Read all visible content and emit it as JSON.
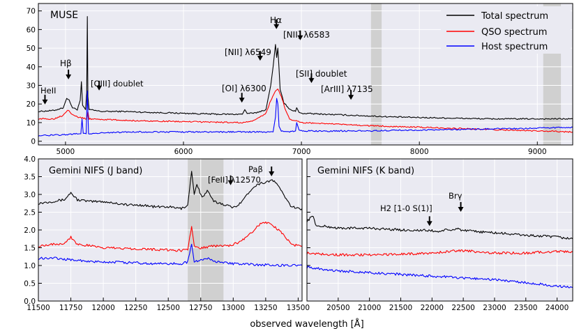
{
  "chart_data": [
    {
      "id": "muse",
      "type": "line",
      "panel_label": "MUSE",
      "xlim": [
        4770,
        9300
      ],
      "ylim": [
        -2,
        74
      ],
      "x_ticks": [
        5000,
        6000,
        7000,
        8000,
        9000
      ],
      "x_tick_labels": [
        "5000",
        "6000",
        "7000",
        "8000",
        "9000"
      ],
      "y_ticks": [
        0,
        10,
        20,
        30,
        40,
        50,
        60,
        70
      ],
      "y_tick_labels": [
        "0",
        "10",
        "20",
        "30",
        "40",
        "50",
        "60",
        "70"
      ],
      "shaded_bands": [
        [
          7590,
          7680
        ],
        [
          9050,
          9200
        ]
      ],
      "legend": [
        {
          "name": "Total spectrum",
          "color": "#000000"
        },
        {
          "name": "QSO spectrum",
          "color": "#ff0000"
        },
        {
          "name": "Host spectrum",
          "color": "#0000ff"
        }
      ],
      "series": [
        {
          "name": "Total spectrum",
          "color": "#000000",
          "x": [
            4770,
            4900,
            4980,
            5010,
            5030,
            5060,
            5100,
            5125,
            5135,
            5145,
            5170,
            5180,
            5185,
            5190,
            5200,
            5300,
            5500,
            5700,
            6000,
            6300,
            6500,
            6520,
            6540,
            6600,
            6700,
            6740,
            6760,
            6780,
            6790,
            6800,
            6820,
            6850,
            6900,
            6950,
            6960,
            6980,
            7000,
            7200,
            7400,
            7600,
            7800,
            8200,
            8600,
            9000,
            9300
          ],
          "y": [
            16,
            16.5,
            18,
            23,
            22,
            18,
            17,
            22,
            32,
            19,
            17,
            26,
            67,
            24,
            17,
            16,
            16,
            15.5,
            15,
            14.5,
            14.5,
            17,
            15,
            15,
            17,
            30,
            40,
            52,
            45,
            50,
            28,
            21,
            17,
            16,
            18,
            15.5,
            15,
            14.5,
            14,
            13.5,
            13,
            12.5,
            12,
            12,
            12
          ]
        },
        {
          "name": "QSO spectrum",
          "color": "#ff0000",
          "x": [
            4770,
            4900,
            4980,
            5020,
            5050,
            5100,
            5180,
            5190,
            5200,
            5400,
            5600,
            6000,
            6500,
            6600,
            6700,
            6740,
            6780,
            6800,
            6830,
            6870,
            6900,
            6950,
            7000,
            7200,
            7500,
            8000,
            8500,
            9000,
            9300
          ],
          "y": [
            12,
            12,
            14,
            17,
            15,
            13,
            12,
            16,
            12,
            11.5,
            11,
            10.5,
            10,
            11,
            15,
            22,
            27,
            28,
            24,
            16,
            12,
            11,
            10,
            9.5,
            8.5,
            7.5,
            6.5,
            5.5,
            5
          ]
        },
        {
          "name": "Host spectrum",
          "color": "#0000ff",
          "x": [
            4770,
            5000,
            5100,
            5130,
            5140,
            5150,
            5175,
            5185,
            5195,
            5205,
            5300,
            5600,
            6000,
            6500,
            6760,
            6780,
            6790,
            6800,
            6810,
            6830,
            6900,
            6950,
            6960,
            6980,
            7000,
            7500,
            8000,
            8500,
            9000,
            9300
          ],
          "y": [
            3,
            3.5,
            4,
            4,
            12,
            4.5,
            4,
            27,
            4,
            4,
            4.5,
            5,
            5,
            5,
            5,
            13,
            23,
            20,
            8,
            5.5,
            5,
            5.5,
            10,
            6,
            5.5,
            5.5,
            6,
            6.5,
            7,
            7.5
          ]
        }
      ],
      "annotations": [
        {
          "text": "HeII",
          "x": 4826,
          "y": 20.5,
          "arrow": true
        },
        {
          "text": "Hβ",
          "x": 5025,
          "y": 34,
          "arrow": true
        },
        {
          "text": "[OIII] doublet",
          "x": 5285,
          "y": 28,
          "arrow": true
        },
        {
          "text": "Hα",
          "x": 6788,
          "y": 61,
          "arrow": true
        },
        {
          "text": "[NII] λ6583",
          "x": 6990,
          "y": 55,
          "arrow": true
        },
        {
          "text": "[NII] λ6549",
          "x": 6650,
          "y": 44,
          "arrow": true
        },
        {
          "text": "[SII] doublet",
          "x": 7085,
          "y": 32,
          "arrow": true
        },
        {
          "text": "[OI] λ6300",
          "x": 6495,
          "y": 21.5,
          "arrow": true
        },
        {
          "text": "[ArIII] λ7135",
          "x": 7420,
          "y": 23,
          "arrow": true
        }
      ]
    },
    {
      "id": "nifs_j",
      "type": "line",
      "panel_label": "Gemini NIFS (J band)",
      "xlim": [
        11500,
        13530
      ],
      "ylim": [
        0,
        4.0
      ],
      "x_ticks": [
        11500,
        11750,
        12000,
        12250,
        12500,
        12750,
        13000,
        13250,
        13500
      ],
      "x_tick_labels": [
        "11500",
        "11750",
        "12000",
        "12250",
        "12500",
        "12750",
        "13000",
        "13250",
        "13500"
      ],
      "y_ticks": [
        0.0,
        0.5,
        1.0,
        1.5,
        2.0,
        2.5,
        3.0,
        3.5,
        4.0
      ],
      "y_tick_labels": [
        "0.0",
        "0.5",
        "1.0",
        "1.5",
        "2.0",
        "2.5",
        "3.0",
        "3.5",
        "4.0"
      ],
      "shaded_bands": [
        [
          12650,
          12925
        ]
      ],
      "series": [
        {
          "name": "Total spectrum",
          "color": "#000000",
          "x": [
            11500,
            11600,
            11700,
            11750,
            11800,
            11900,
            12000,
            12100,
            12200,
            12300,
            12400,
            12500,
            12600,
            12650,
            12680,
            12700,
            12720,
            12760,
            12800,
            12850,
            12900,
            12950,
            13000,
            13050,
            13100,
            13150,
            13200,
            13250,
            13300,
            13350,
            13400,
            13450,
            13500,
            13530
          ],
          "y": [
            2.75,
            2.8,
            2.85,
            3.05,
            2.85,
            2.8,
            2.8,
            2.75,
            2.7,
            2.7,
            2.65,
            2.65,
            2.6,
            2.7,
            3.65,
            3.0,
            3.3,
            2.9,
            3.1,
            2.8,
            2.75,
            2.7,
            2.62,
            2.75,
            2.95,
            3.2,
            3.3,
            3.35,
            3.4,
            3.25,
            2.9,
            2.65,
            2.6,
            2.6
          ]
        },
        {
          "name": "QSO spectrum",
          "color": "#ff0000",
          "x": [
            11500,
            11600,
            11700,
            11750,
            11800,
            11900,
            12000,
            12200,
            12400,
            12600,
            12650,
            12680,
            12700,
            12750,
            12850,
            12950,
            13050,
            13150,
            13200,
            13250,
            13300,
            13350,
            13400,
            13450,
            13500,
            13530
          ],
          "y": [
            1.55,
            1.6,
            1.62,
            1.8,
            1.6,
            1.55,
            1.5,
            1.48,
            1.45,
            1.42,
            1.45,
            2.1,
            1.55,
            1.5,
            1.55,
            1.55,
            1.65,
            1.95,
            2.15,
            2.2,
            2.15,
            2.0,
            1.8,
            1.6,
            1.55,
            1.55
          ]
        },
        {
          "name": "Host spectrum",
          "color": "#0000ff",
          "x": [
            11500,
            11600,
            11700,
            11800,
            11900,
            12000,
            12200,
            12400,
            12600,
            12650,
            12680,
            12700,
            12800,
            12900,
            13000,
            13200,
            13400,
            13530
          ],
          "y": [
            1.2,
            1.22,
            1.18,
            1.15,
            1.1,
            1.1,
            1.08,
            1.05,
            1.05,
            1.1,
            1.6,
            1.1,
            1.2,
            1.08,
            1.05,
            1.02,
            1.0,
            1.0
          ]
        }
      ],
      "annotations": [
        {
          "text": "[FeII] λ12570",
          "x": 12980,
          "y": 3.3,
          "arrow": true
        },
        {
          "text": "Paβ",
          "x": 13295,
          "y": 3.55,
          "arrow": true
        }
      ]
    },
    {
      "id": "nifs_k",
      "type": "line",
      "panel_label": "Gemini NIFS (K band)",
      "xlim": [
        20000,
        24250
      ],
      "ylim": [
        0,
        4.0
      ],
      "x_ticks": [
        20500,
        21000,
        21500,
        22000,
        22500,
        23000,
        23500,
        24000
      ],
      "x_tick_labels": [
        "20500",
        "21000",
        "21500",
        "22000",
        "22500",
        "23000",
        "23500",
        "24000"
      ],
      "series": [
        {
          "name": "Total spectrum",
          "color": "#000000",
          "x": [
            20000,
            20100,
            20150,
            20300,
            20500,
            21000,
            21500,
            22000,
            22100,
            22200,
            22300,
            22400,
            22500,
            23000,
            23500,
            24000,
            24250
          ],
          "y": [
            2.25,
            2.4,
            2.1,
            2.1,
            2.05,
            2.05,
            2.0,
            1.98,
            1.95,
            2.0,
            1.98,
            2.05,
            1.98,
            1.92,
            1.85,
            1.8,
            1.75
          ]
        },
        {
          "name": "QSO spectrum",
          "color": "#ff0000",
          "x": [
            20000,
            20500,
            21000,
            21500,
            22000,
            22300,
            22500,
            22800,
            23000,
            23500,
            24000,
            24250
          ],
          "y": [
            1.35,
            1.3,
            1.3,
            1.32,
            1.35,
            1.4,
            1.42,
            1.38,
            1.35,
            1.35,
            1.4,
            1.38
          ]
        },
        {
          "name": "Host spectrum",
          "color": "#0000ff",
          "x": [
            20000,
            20500,
            21000,
            21500,
            22000,
            22500,
            23000,
            23500,
            24000,
            24250
          ],
          "y": [
            0.95,
            0.85,
            0.8,
            0.75,
            0.7,
            0.65,
            0.6,
            0.52,
            0.42,
            0.38
          ]
        }
      ],
      "annotations": [
        {
          "text": "Brγ",
          "x": 22460,
          "y": 2.55,
          "arrow": true
        },
        {
          "text": "H2 [1-0 S(1)]",
          "x": 21960,
          "y": 2.15,
          "arrow": true
        }
      ]
    }
  ],
  "xlabel": "observed wavelength [Å]"
}
